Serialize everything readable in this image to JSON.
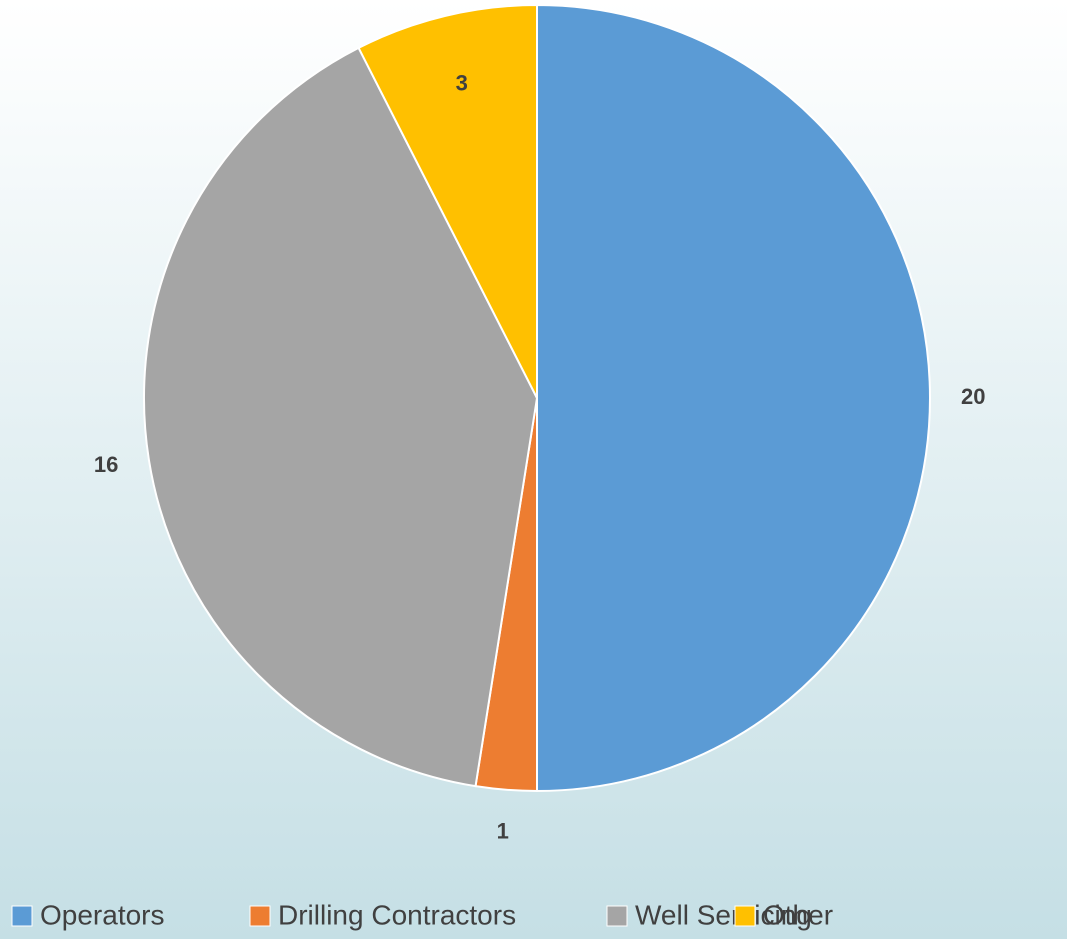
{
  "chart_data": {
    "type": "pie",
    "categories": [
      "Operators",
      "Drilling Contractors",
      "Well Servicing",
      "Other"
    ],
    "values": [
      20,
      1,
      16,
      3
    ],
    "colors": [
      "#5b9bd5",
      "#ed7d31",
      "#a5a5a5",
      "#ffc000"
    ],
    "legend": "bottom"
  }
}
